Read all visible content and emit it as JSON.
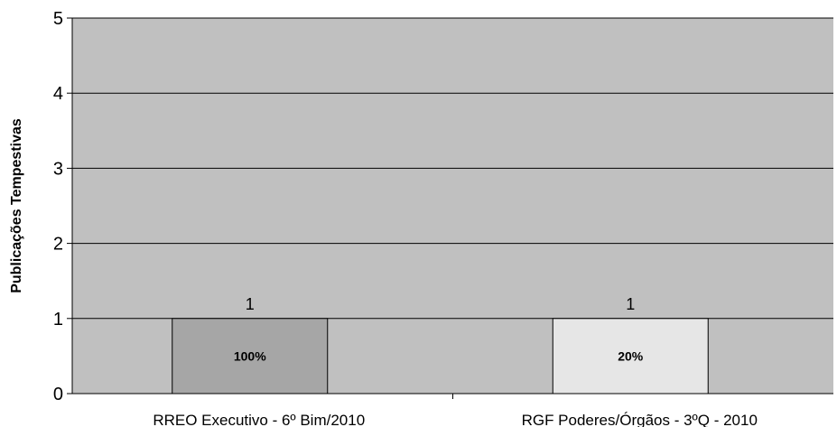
{
  "chart_data": {
    "type": "bar",
    "title": "",
    "xlabel": "",
    "ylabel": "Publicações Tempestivas",
    "categories": [
      "RREO Executivo - 6º Bim/2010",
      "RGF Poderes/Órgãos - 3ºQ - 2010"
    ],
    "values": [
      1,
      1
    ],
    "bar_percent_labels": [
      "100%",
      "20%"
    ],
    "bar_colors": [
      "#a6a6a6",
      "#e6e6e6"
    ],
    "ylim": [
      0,
      5
    ],
    "y_ticks": [
      0,
      1,
      2,
      3,
      4,
      5
    ],
    "grid": true,
    "legend": "none",
    "plot_background": "#c0c0c0",
    "gridline_color": "#000000"
  }
}
